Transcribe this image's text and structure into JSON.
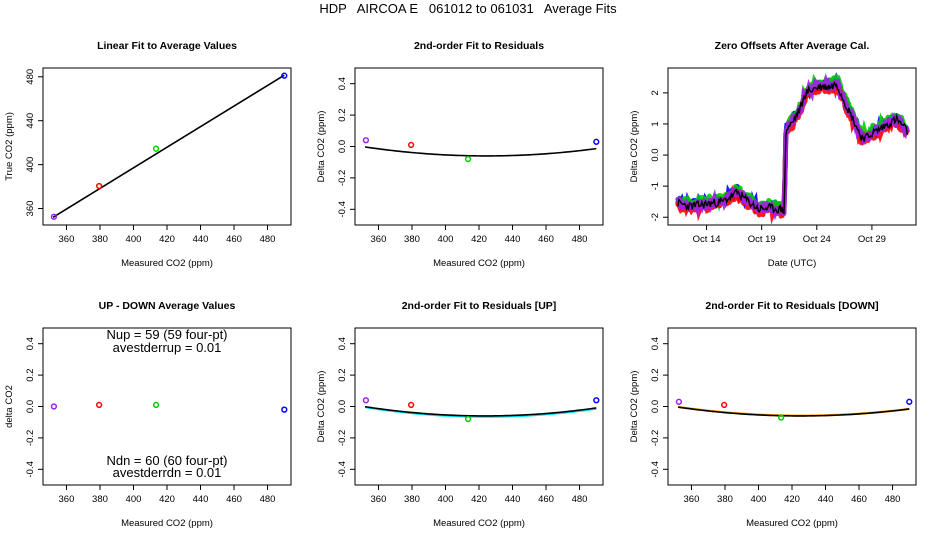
{
  "main_title": "HDP   AIRCOA E   061012 to 061031   Average Fits",
  "colors": {
    "purple": "#a020f0",
    "red": "#ff0000",
    "green": "#00cc00",
    "blue": "#0000ff",
    "black": "#000000",
    "cyan": "#00e5ee",
    "orange": "#ffa500"
  },
  "chart_data": [
    {
      "id": "p1",
      "type": "scatter",
      "title": "Linear Fit to Average Values",
      "xlabel": "Measured CO2 (ppm)",
      "ylabel": "True CO2 (ppm)",
      "xlim": [
        346,
        494
      ],
      "ylim": [
        345,
        488
      ],
      "xticks": [
        360,
        380,
        400,
        420,
        440,
        460,
        480
      ],
      "yticks": [
        360,
        400,
        440,
        480
      ],
      "points": [
        {
          "x": 352.5,
          "y": 352.5,
          "color": "purple"
        },
        {
          "x": 379.5,
          "y": 380.5,
          "color": "red"
        },
        {
          "x": 413.5,
          "y": 414.5,
          "color": "green"
        },
        {
          "x": 490.0,
          "y": 481.0,
          "color": "blue"
        }
      ],
      "fit": {
        "type": "linear",
        "points": [
          [
            352.0,
            352.0
          ],
          [
            490.0,
            481.5
          ]
        ],
        "color": "black"
      }
    },
    {
      "id": "p2",
      "type": "scatter",
      "title": "2nd-order Fit to Residuals",
      "xlabel": "Measured CO2 (ppm)",
      "ylabel": "Delta CO2 (ppm)",
      "xlim": [
        346,
        494
      ],
      "ylim": [
        -0.5,
        0.5
      ],
      "xticks": [
        360,
        380,
        400,
        420,
        440,
        460,
        480
      ],
      "yticks": [
        -0.4,
        -0.2,
        0.0,
        0.2,
        0.4
      ],
      "points": [
        {
          "x": 352.5,
          "y": 0.04,
          "color": "purple"
        },
        {
          "x": 379.5,
          "y": 0.01,
          "color": "red"
        },
        {
          "x": 413.5,
          "y": -0.08,
          "color": "green"
        },
        {
          "x": 490.0,
          "y": 0.03,
          "color": "blue"
        }
      ],
      "fit": {
        "type": "quadratic",
        "coef": [
          1.085e-05,
          424.5,
          -0.06
        ],
        "xrange": [
          352,
          490
        ],
        "color": "black"
      }
    },
    {
      "id": "p3",
      "type": "line",
      "title": "Zero Offsets After Average Cal.",
      "xlabel": "Date (UTC)",
      "ylabel": "Delta CO2 (ppm)",
      "xlim": [
        10.5,
        33.0
      ],
      "ylim": [
        -2.25,
        2.8
      ],
      "xticks": [
        14,
        19,
        24,
        29
      ],
      "xtick_labels": [
        "Oct 14",
        "Oct 19",
        "Oct 24",
        "Oct 29"
      ],
      "yticks": [
        -2,
        -1,
        0,
        1,
        2
      ],
      "series": [
        {
          "name": "blue",
          "color": "blue",
          "offset": 0.07,
          "seed": 3
        },
        {
          "name": "green",
          "color": "green",
          "offset": 0.12,
          "seed": 7
        },
        {
          "name": "red",
          "color": "red",
          "offset": -0.08,
          "seed": 11
        },
        {
          "name": "purple",
          "color": "purple",
          "offset": 0.02,
          "seed": 17
        },
        {
          "name": "black",
          "color": "black",
          "offset": 0.0,
          "seed": 23
        }
      ],
      "trend": [
        [
          11.4,
          -1.55
        ],
        [
          12.5,
          -1.65
        ],
        [
          13.5,
          -1.6
        ],
        [
          14.5,
          -1.55
        ],
        [
          15.5,
          -1.5
        ],
        [
          16.8,
          -1.2
        ],
        [
          17.8,
          -1.5
        ],
        [
          18.8,
          -1.75
        ],
        [
          19.5,
          -1.7
        ],
        [
          20.8,
          -1.75
        ],
        [
          21.05,
          -1.78
        ],
        [
          21.2,
          0.8
        ],
        [
          21.8,
          1.05
        ],
        [
          22.5,
          1.5
        ],
        [
          23.0,
          2.0
        ],
        [
          23.8,
          2.15
        ],
        [
          24.5,
          2.2
        ],
        [
          25.2,
          2.2
        ],
        [
          25.8,
          2.3
        ],
        [
          26.3,
          1.9
        ],
        [
          26.8,
          1.5
        ],
        [
          27.5,
          1.0
        ],
        [
          28.0,
          0.6
        ],
        [
          28.5,
          0.55
        ],
        [
          29.0,
          0.7
        ],
        [
          29.8,
          0.85
        ],
        [
          30.5,
          1.0
        ],
        [
          31.2,
          1.15
        ],
        [
          31.8,
          0.95
        ],
        [
          32.2,
          0.75
        ]
      ]
    },
    {
      "id": "p4",
      "type": "scatter",
      "title": "UP - DOWN Average Values",
      "xlabel": "Measured CO2 (ppm)",
      "ylabel": "delta CO2",
      "xlim": [
        346,
        494
      ],
      "ylim": [
        -0.5,
        0.5
      ],
      "xticks": [
        360,
        380,
        400,
        420,
        440,
        460,
        480
      ],
      "yticks": [
        -0.4,
        -0.2,
        0.0,
        0.2,
        0.4
      ],
      "points": [
        {
          "x": 352.5,
          "y": 0.0,
          "color": "purple"
        },
        {
          "x": 379.5,
          "y": 0.01,
          "color": "red"
        },
        {
          "x": 413.5,
          "y": 0.01,
          "color": "green"
        },
        {
          "x": 490.0,
          "y": -0.02,
          "color": "blue"
        }
      ],
      "annotations": {
        "nup": "Nup = 59 (59 four-pt)",
        "avestderrup": "avestderrup =  0.01",
        "ndn": "Ndn = 60 (60 four-pt)",
        "avestderrdn": "avestderrdn =  0.01"
      }
    },
    {
      "id": "p5",
      "type": "scatter",
      "title": "2nd-order Fit to Residuals [UP]",
      "xlabel": "Measured CO2 (ppm)",
      "ylabel": "Delta CO2 (ppm)",
      "xlim": [
        346,
        494
      ],
      "ylim": [
        -0.5,
        0.5
      ],
      "xticks": [
        360,
        380,
        400,
        420,
        440,
        460,
        480
      ],
      "yticks": [
        -0.4,
        -0.2,
        0.0,
        0.2,
        0.4
      ],
      "points": [
        {
          "x": 352.5,
          "y": 0.04,
          "color": "purple"
        },
        {
          "x": 379.5,
          "y": 0.01,
          "color": "red"
        },
        {
          "x": 413.5,
          "y": -0.08,
          "color": "green"
        },
        {
          "x": 490.0,
          "y": 0.04,
          "color": "blue"
        }
      ],
      "fit": {
        "type": "quadratic",
        "coef": [
          1.15e-05,
          423.5,
          -0.06
        ],
        "xrange": [
          352,
          490
        ],
        "color": "black"
      },
      "fit2": {
        "type": "quadratic",
        "coef": [
          1.18e-05,
          424.0,
          -0.065
        ],
        "xrange": [
          352,
          490
        ],
        "color": "cyan"
      }
    },
    {
      "id": "p6",
      "type": "scatter",
      "title": "2nd-order Fit to Residuals [DOWN]",
      "xlabel": "Measured CO2 (ppm)",
      "ylabel": "Delta CO2 (ppm)",
      "xlim": [
        346,
        494
      ],
      "ylim": [
        -0.5,
        0.5
      ],
      "xticks": [
        360,
        380,
        400,
        420,
        440,
        460,
        480
      ],
      "yticks": [
        -0.4,
        -0.2,
        0.0,
        0.2,
        0.4
      ],
      "points": [
        {
          "x": 352.5,
          "y": 0.03,
          "color": "purple"
        },
        {
          "x": 379.5,
          "y": 0.01,
          "color": "red"
        },
        {
          "x": 413.5,
          "y": -0.07,
          "color": "green"
        },
        {
          "x": 490.0,
          "y": 0.03,
          "color": "blue"
        }
      ],
      "fit": {
        "type": "quadratic",
        "coef": [
          1.05e-05,
          425.0,
          -0.06
        ],
        "xrange": [
          352,
          490
        ],
        "color": "black"
      },
      "fit2": {
        "type": "quadratic",
        "coef": [
          1.03e-05,
          425.5,
          -0.058
        ],
        "xrange": [
          352,
          490
        ],
        "color": "orange"
      }
    }
  ]
}
